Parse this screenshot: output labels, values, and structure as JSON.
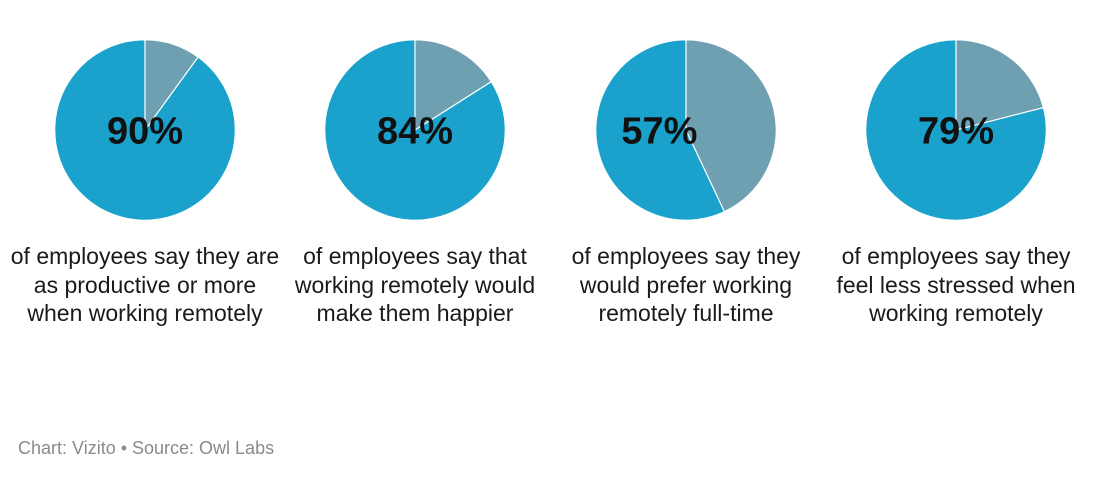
{
  "chart_data": [
    {
      "type": "pie",
      "value": 90,
      "label": "90%",
      "caption": "of employees say they are as productive or more when working remotely"
    },
    {
      "type": "pie",
      "value": 84,
      "label": "84%",
      "caption": "of employees say that working remotely would make them happier"
    },
    {
      "type": "pie",
      "value": 57,
      "label": "57%",
      "caption": "of employees say they would prefer working remotely full-time"
    },
    {
      "type": "pie",
      "value": 79,
      "label": "79%",
      "caption": "of employees say they feel less stressed when working remotely"
    }
  ],
  "colors": {
    "primary": "#1aa2cc",
    "remainder": "#6fa0b1"
  },
  "footer": "Chart: Vizito • Source: Owl Labs"
}
